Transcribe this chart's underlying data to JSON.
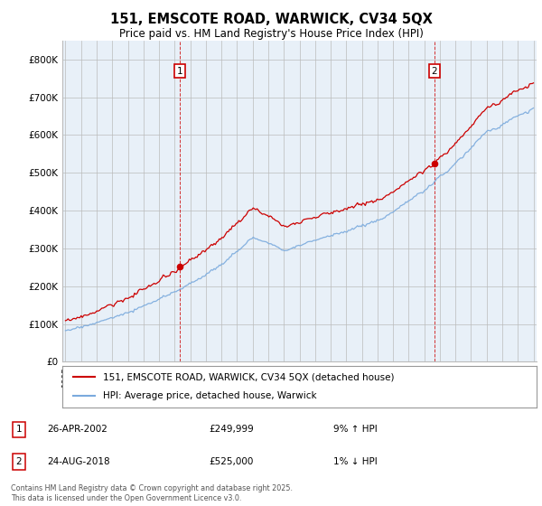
{
  "title": "151, EMSCOTE ROAD, WARWICK, CV34 5QX",
  "subtitle": "Price paid vs. HM Land Registry's House Price Index (HPI)",
  "ylim": [
    0,
    850000
  ],
  "yticks": [
    0,
    100000,
    200000,
    300000,
    400000,
    500000,
    600000,
    700000,
    800000
  ],
  "ytick_labels": [
    "£0",
    "£100K",
    "£200K",
    "£300K",
    "£400K",
    "£500K",
    "£600K",
    "£700K",
    "£800K"
  ],
  "x_start_year": 1995,
  "x_end_year": 2025,
  "line1_color": "#cc0000",
  "line2_color": "#7aaadd",
  "chart_bg": "#e8f0f8",
  "annotation1_year": 2002.32,
  "annotation1_price": 249999,
  "annotation2_year": 2018.65,
  "annotation2_price": 525000,
  "legend1_label": "151, EMSCOTE ROAD, WARWICK, CV34 5QX (detached house)",
  "legend2_label": "HPI: Average price, detached house, Warwick",
  "footer": "Contains HM Land Registry data © Crown copyright and database right 2025.\nThis data is licensed under the Open Government Licence v3.0.",
  "background_color": "#ffffff",
  "grid_color": "#bbbbbb",
  "table_row1": [
    "1",
    "26-APR-2002",
    "£249,999",
    "9% ↑ HPI"
  ],
  "table_row2": [
    "2",
    "24-AUG-2018",
    "£525,000",
    "1% ↓ HPI"
  ]
}
